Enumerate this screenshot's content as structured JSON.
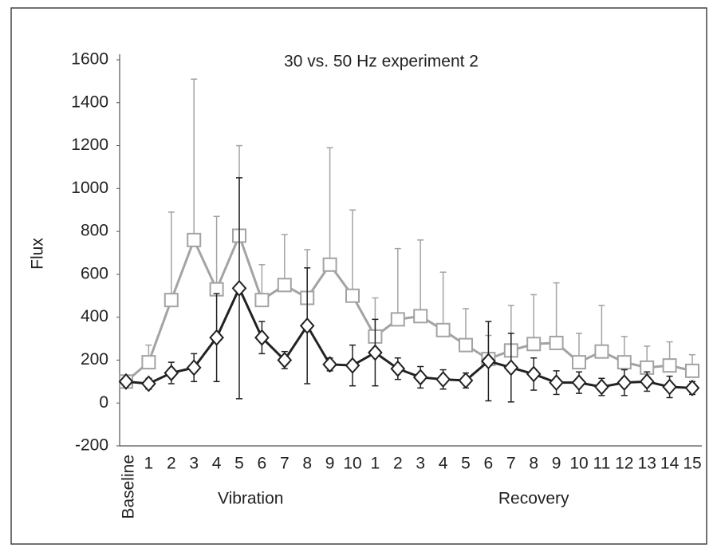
{
  "chart_data": {
    "type": "line",
    "title": "30 vs. 50 Hz experiment 2",
    "y_label": "Flux",
    "categories": [
      "Baseline",
      "1",
      "2",
      "3",
      "4",
      "5",
      "6",
      "7",
      "8",
      "9",
      "10",
      "1",
      "2",
      "3",
      "4",
      "5",
      "6",
      "7",
      "8",
      "9",
      "10",
      "11",
      "12",
      "13",
      "14",
      "15"
    ],
    "groups": [
      {
        "label": "Vibration",
        "from": 1,
        "to": 10
      },
      {
        "label": "Recovery",
        "from": 11,
        "to": 25
      }
    ],
    "ylim": [
      -200,
      1600
    ],
    "yticks": [
      -200,
      0,
      200,
      400,
      600,
      800,
      1000,
      1200,
      1400,
      1600
    ],
    "grid": false,
    "series": [
      {
        "color": "#a3a3a3",
        "marker": "square",
        "error_direction": "up",
        "values": [
          100,
          190,
          480,
          760,
          530,
          780,
          480,
          550,
          490,
          645,
          500,
          310,
          390,
          405,
          340,
          270,
          205,
          245,
          275,
          280,
          190,
          240,
          190,
          165,
          175,
          150
        ],
        "errors": [
          null,
          80,
          410,
          750,
          340,
          420,
          165,
          235,
          225,
          545,
          400,
          180,
          330,
          355,
          270,
          170,
          110,
          210,
          230,
          280,
          135,
          215,
          120,
          100,
          110,
          75
        ]
      },
      {
        "color": "#222222",
        "marker": "diamond",
        "error_direction": "both",
        "values": [
          100,
          90,
          140,
          165,
          305,
          535,
          305,
          200,
          360,
          180,
          175,
          235,
          160,
          120,
          110,
          105,
          195,
          165,
          135,
          95,
          95,
          75,
          95,
          100,
          75,
          70
        ],
        "errors": [
          null,
          25,
          50,
          65,
          205,
          515,
          75,
          40,
          270,
          30,
          95,
          155,
          50,
          50,
          45,
          35,
          185,
          160,
          75,
          55,
          50,
          40,
          60,
          45,
          50,
          30
        ]
      }
    ]
  }
}
